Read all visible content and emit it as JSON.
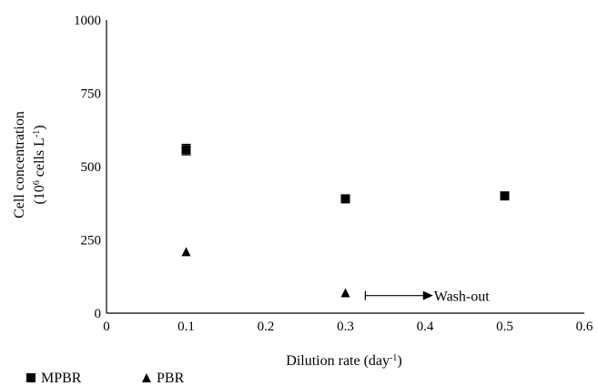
{
  "chart_data": {
    "type": "scatter",
    "xlabel_text": "Dilution rate (day",
    "xlabel_sup": "-1",
    "xlabel_close": ")",
    "ylabel_line1": "Cell concentration",
    "ylabel_line2_open": "(10",
    "ylabel_line2_sup1": "6",
    "ylabel_line2_mid": " cells L",
    "ylabel_line2_sup2": "-1",
    "ylabel_line2_close": ")",
    "xlim": [
      0,
      0.6
    ],
    "ylim": [
      0,
      1000
    ],
    "x_ticks": [
      "0",
      "0.1",
      "0.2",
      "0.3",
      "0.4",
      "0.5",
      "0.6"
    ],
    "x_tick_values": [
      0,
      0.1,
      0.2,
      0.3,
      0.4,
      0.5,
      0.6
    ],
    "y_ticks": [
      "0",
      "250",
      "500",
      "750",
      "1000"
    ],
    "y_tick_values": [
      0,
      250,
      500,
      750,
      1000
    ],
    "grid": false,
    "legend_position": "bottom-left",
    "series": [
      {
        "name": "MPBR",
        "marker": "square",
        "color": "#000000",
        "x": [
          0.1,
          0.3,
          0.5
        ],
        "y": [
          558,
          390,
          400
        ],
        "err": [
          18,
          0,
          0
        ]
      },
      {
        "name": "PBR",
        "marker": "triangle",
        "color": "#000000",
        "x": [
          0.1,
          0.3
        ],
        "y": [
          210,
          70
        ],
        "err": [
          0,
          0
        ]
      }
    ],
    "annotations": [
      {
        "text": "Wash-out",
        "x_start": 0.325,
        "x_end": 0.41,
        "y": 60
      }
    ]
  }
}
